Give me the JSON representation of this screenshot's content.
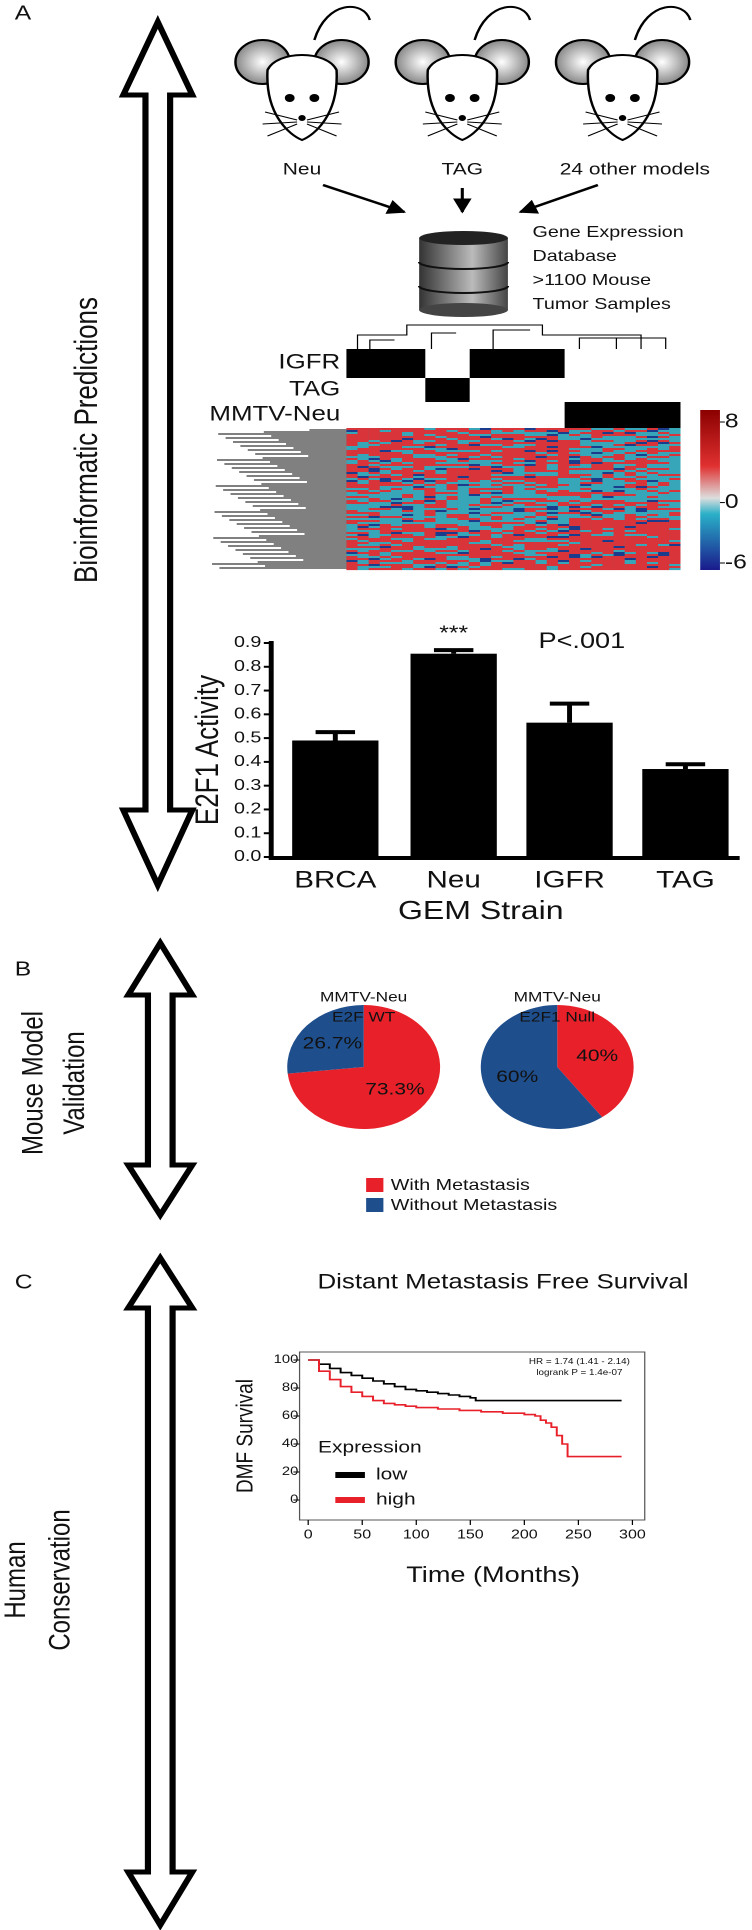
{
  "panel_labels": [
    "A",
    "B",
    "C"
  ],
  "side_labels": {
    "a": "Bioinformatic Predictions",
    "b": [
      "Mouse Model",
      "Validation"
    ],
    "c": [
      "Human",
      "Conservation"
    ]
  },
  "mouse_labels": [
    "Neu",
    "TAG",
    "24 other models"
  ],
  "database_label": [
    "Gene Expression",
    "Database",
    ">1100 Mouse",
    "Tumor Samples"
  ],
  "chart_data": [
    {
      "type": "heatmap",
      "row_labels": [
        "IGFR",
        "TAG",
        "MMTV-Neu"
      ],
      "colorbar_lim": [
        -6,
        8
      ],
      "colorbar_ticks": [
        8,
        0,
        -6
      ]
    },
    {
      "type": "bar",
      "ylabel": "E2F1 Activity",
      "xlabel": "GEM Strain",
      "annotations": [
        "***",
        "P<.001"
      ],
      "categories": [
        "BRCA",
        "Neu",
        "IGFR",
        "TAG"
      ],
      "values": [
        0.49,
        0.855,
        0.565,
        0.37
      ],
      "errors": [
        0.035,
        0.015,
        0.08,
        0.02
      ],
      "color": "#000000",
      "ylim": [
        0,
        0.9
      ],
      "yticks": [
        {
          "value": 0,
          "label": "0.0"
        },
        0.1,
        0.2,
        0.3,
        0.4,
        0.5,
        0.6,
        0.7,
        0.8,
        0.9
      ]
    },
    {
      "type": "pie",
      "title": [
        "MMTV-Neu",
        "E2F WT"
      ],
      "categories": [
        "With Metastasis",
        "Without Metastasis"
      ],
      "values": [
        73.3,
        26.7
      ],
      "value_labels": [
        "73.3%",
        "26.7%"
      ],
      "colors": [
        "#e8202a",
        "#1f4e8c"
      ],
      "legend": true
    },
    {
      "type": "pie",
      "title": [
        "MMTV-Neu",
        "E2F1 Null"
      ],
      "categories": [
        "With Metastasis",
        "Without Metastasis"
      ],
      "values": [
        40,
        60
      ],
      "value_labels": [
        "40%",
        "60%"
      ],
      "colors": [
        "#e8202a",
        "#1f4e8c"
      ],
      "legend": false
    },
    {
      "type": "step",
      "title": "Distant Metastasis Free Survival",
      "xlabel": "Time (Months)",
      "ylabel": "DMF Survival",
      "annotations": [
        "HR = 1.74 (1.41 - 2.14)",
        "logrank P = 1.4e-07"
      ],
      "legend_title": "Expression",
      "series": [
        {
          "name": "low",
          "color": "#000000",
          "x": [
            0,
            10,
            20,
            30,
            40,
            50,
            60,
            70,
            80,
            90,
            100,
            110,
            120,
            130,
            140,
            150,
            155,
            160,
            200,
            250,
            290
          ],
          "values": [
            100,
            97,
            94,
            91,
            89,
            87,
            85,
            83,
            81,
            79,
            78,
            77,
            76,
            75,
            74,
            73,
            71,
            71,
            71,
            71,
            71
          ]
        },
        {
          "name": "high",
          "color": "#e8202a",
          "x": [
            0,
            10,
            20,
            30,
            40,
            50,
            60,
            70,
            80,
            90,
            100,
            120,
            140,
            160,
            180,
            200,
            210,
            215,
            220,
            225,
            230,
            235,
            240,
            260,
            290
          ],
          "values": [
            100,
            92,
            86,
            81,
            77,
            74,
            71,
            69,
            68,
            67,
            66,
            65,
            64,
            63,
            62,
            61,
            60,
            57,
            55,
            52,
            46,
            40,
            31,
            31,
            31
          ]
        }
      ],
      "xlim": [
        0,
        300
      ],
      "ylim": [
        0,
        100
      ],
      "xticks": [
        0,
        50,
        100,
        150,
        200,
        250,
        300
      ],
      "yticks": [
        0,
        20,
        40,
        60,
        80,
        100
      ]
    }
  ]
}
